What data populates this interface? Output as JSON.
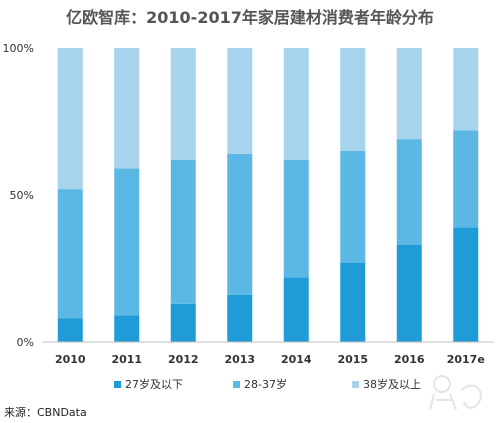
{
  "chart_data": {
    "type": "bar",
    "stacked": "percent",
    "title": "亿欧智库：2010-2017年家居建材消费者年龄分布",
    "categories": [
      "2010",
      "2011",
      "2012",
      "2013",
      "2014",
      "2015",
      "2016",
      "2017e"
    ],
    "series": [
      {
        "name": "27岁及以下",
        "color": "#1f9bd7",
        "values": [
          8,
          9,
          13,
          16,
          22,
          27,
          33,
          39
        ]
      },
      {
        "name": "28-37岁",
        "color": "#5bb7e3",
        "values": [
          44,
          50,
          49,
          48,
          40,
          38,
          36,
          33
        ]
      },
      {
        "name": "38岁及以上",
        "color": "#a7d3ec",
        "values": [
          48,
          41,
          38,
          36,
          38,
          35,
          31,
          28
        ]
      }
    ],
    "yticks": [
      "0%",
      "50%",
      "100%"
    ],
    "ylim": [
      0,
      100
    ],
    "legend": "bottom",
    "grid": false
  },
  "source": "来源：CBNData"
}
